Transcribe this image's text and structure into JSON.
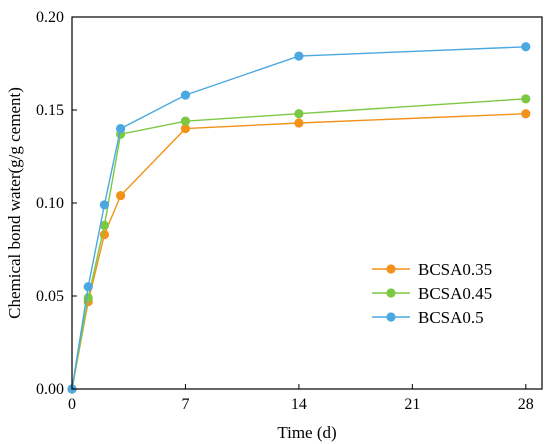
{
  "chart_data": {
    "type": "line",
    "title": "",
    "xlabel": "Time (d)",
    "ylabel": "Chemical bond water(g/g cement)",
    "xlim": [
      0,
      29
    ],
    "ylim": [
      0,
      0.2
    ],
    "xticks": [
      0,
      7,
      14,
      21,
      28
    ],
    "yticks": [
      0.0,
      0.05,
      0.1,
      0.15,
      0.2
    ],
    "xtick_labels": [
      "0",
      "7",
      "14",
      "21",
      "28"
    ],
    "ytick_labels": [
      "0.00",
      "0.05",
      "0.10",
      "0.15",
      "0.20"
    ],
    "grid": false,
    "legend_position": "lower-right",
    "series": [
      {
        "name": "BCSA0.35",
        "color": "#f39219",
        "x": [
          0,
          1,
          2,
          3,
          7,
          14,
          28
        ],
        "values": [
          0.0,
          0.047,
          0.083,
          0.104,
          0.14,
          0.143,
          0.148
        ]
      },
      {
        "name": "BCSA0.45",
        "color": "#7cc843",
        "x": [
          0,
          1,
          2,
          3,
          7,
          14,
          28
        ],
        "values": [
          0.0,
          0.049,
          0.088,
          0.137,
          0.144,
          0.148,
          0.156
        ]
      },
      {
        "name": "BCSA0.5",
        "color": "#4ba8e0",
        "x": [
          0,
          1,
          2,
          3,
          7,
          14,
          28
        ],
        "values": [
          0.0,
          0.055,
          0.099,
          0.14,
          0.158,
          0.179,
          0.184
        ]
      }
    ]
  }
}
